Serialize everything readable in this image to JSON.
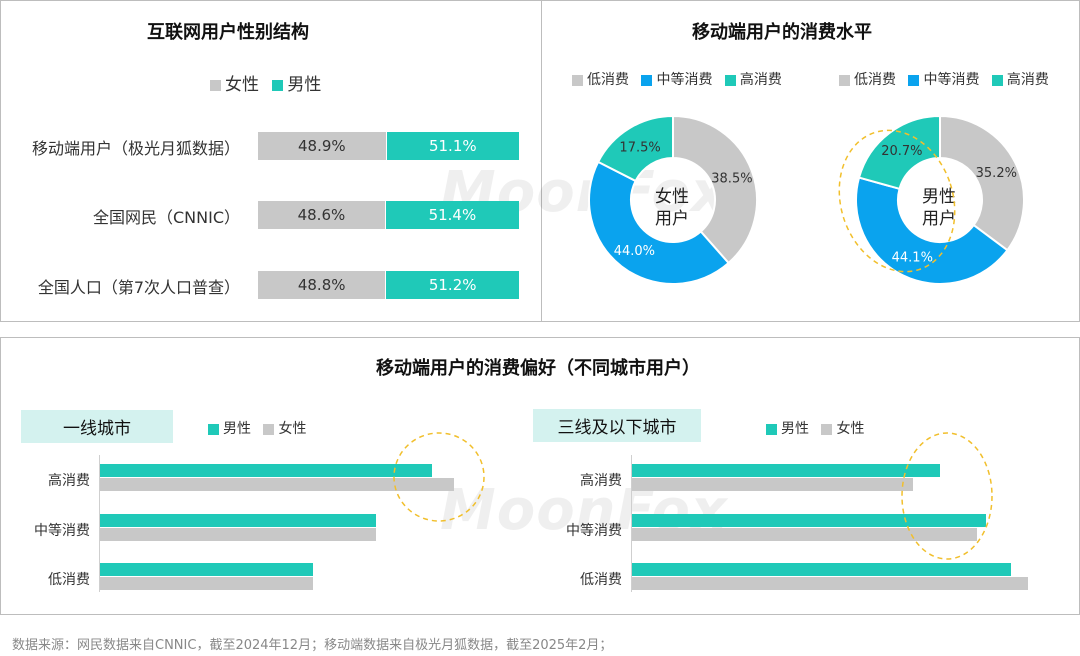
{
  "colors": {
    "female": "#c8c8c8",
    "male": "#1fc9b8",
    "low": "#c8c8c8",
    "mid": "#0aa3ee",
    "high": "#1fc9b8"
  },
  "gender": {
    "title": "互联网用户性别结构",
    "legend": {
      "female": "女性",
      "male": "男性"
    }
  },
  "consumption": {
    "title": "移动端用户的消费水平",
    "legend": {
      "low": "低消费",
      "mid": "中等消费",
      "high": "高消费"
    },
    "female_center": [
      "女性",
      "用户"
    ],
    "male_center": [
      "男性",
      "用户"
    ]
  },
  "preference": {
    "title": "移动端用户的消费偏好（不同城市用户）",
    "legend": {
      "male": "男性",
      "female": "女性"
    },
    "tier1_label": "一线城市",
    "tier3_label": "三线及以下城市"
  },
  "watermark": "MoonFox",
  "source": "数据来源：网民数据来自CNNIC，截至2024年12月；移动端数据来自极光月狐数据，截至2025年2月；",
  "chart_data": [
    {
      "type": "bar",
      "title": "互联网用户性别结构",
      "categories": [
        "移动端用户（极光月狐数据）",
        "全国网民（CNNIC）",
        "全国人口（第7次人口普查）"
      ],
      "series": [
        {
          "name": "女性",
          "values": [
            48.9,
            48.6,
            48.8
          ],
          "labels": [
            "48.9%",
            "48.6%",
            "48.8%"
          ]
        },
        {
          "name": "男性",
          "values": [
            51.1,
            51.4,
            51.2
          ],
          "labels": [
            "51.1%",
            "51.4%",
            "51.2%"
          ]
        }
      ],
      "stacked": true,
      "legend": "top"
    },
    {
      "type": "pie",
      "title": "移动端用户的消费水平",
      "subtitle": "女性用户",
      "categories": [
        "低消费",
        "中等消费",
        "高消费"
      ],
      "values": [
        38.5,
        44.0,
        17.5
      ],
      "labels": [
        "38.5%",
        "44.0%",
        "17.5%"
      ]
    },
    {
      "type": "pie",
      "title": "移动端用户的消费水平",
      "subtitle": "男性用户",
      "categories": [
        "低消费",
        "中等消费",
        "高消费"
      ],
      "values": [
        35.2,
        44.1,
        20.7
      ],
      "labels": [
        "35.2%",
        "44.1%",
        "20.7%"
      ]
    },
    {
      "type": "bar",
      "title": "移动端用户的消费偏好（不同城市用户）",
      "subtitle": "一线城市",
      "categories": [
        "高消费",
        "中等消费",
        "低消费"
      ],
      "series": [
        {
          "name": "男性",
          "values": [
            332,
            276,
            213
          ]
        },
        {
          "name": "女性",
          "values": [
            354,
            276,
            213
          ]
        }
      ],
      "orientation": "horizontal"
    },
    {
      "type": "bar",
      "title": "移动端用户的消费偏好（不同城市用户）",
      "subtitle": "三线及以下城市",
      "categories": [
        "高消费",
        "中等消费",
        "低消费"
      ],
      "series": [
        {
          "name": "男性",
          "values": [
            308,
            354,
            379
          ]
        },
        {
          "name": "女性",
          "values": [
            281,
            345,
            396
          ]
        }
      ],
      "orientation": "horizontal"
    }
  ]
}
